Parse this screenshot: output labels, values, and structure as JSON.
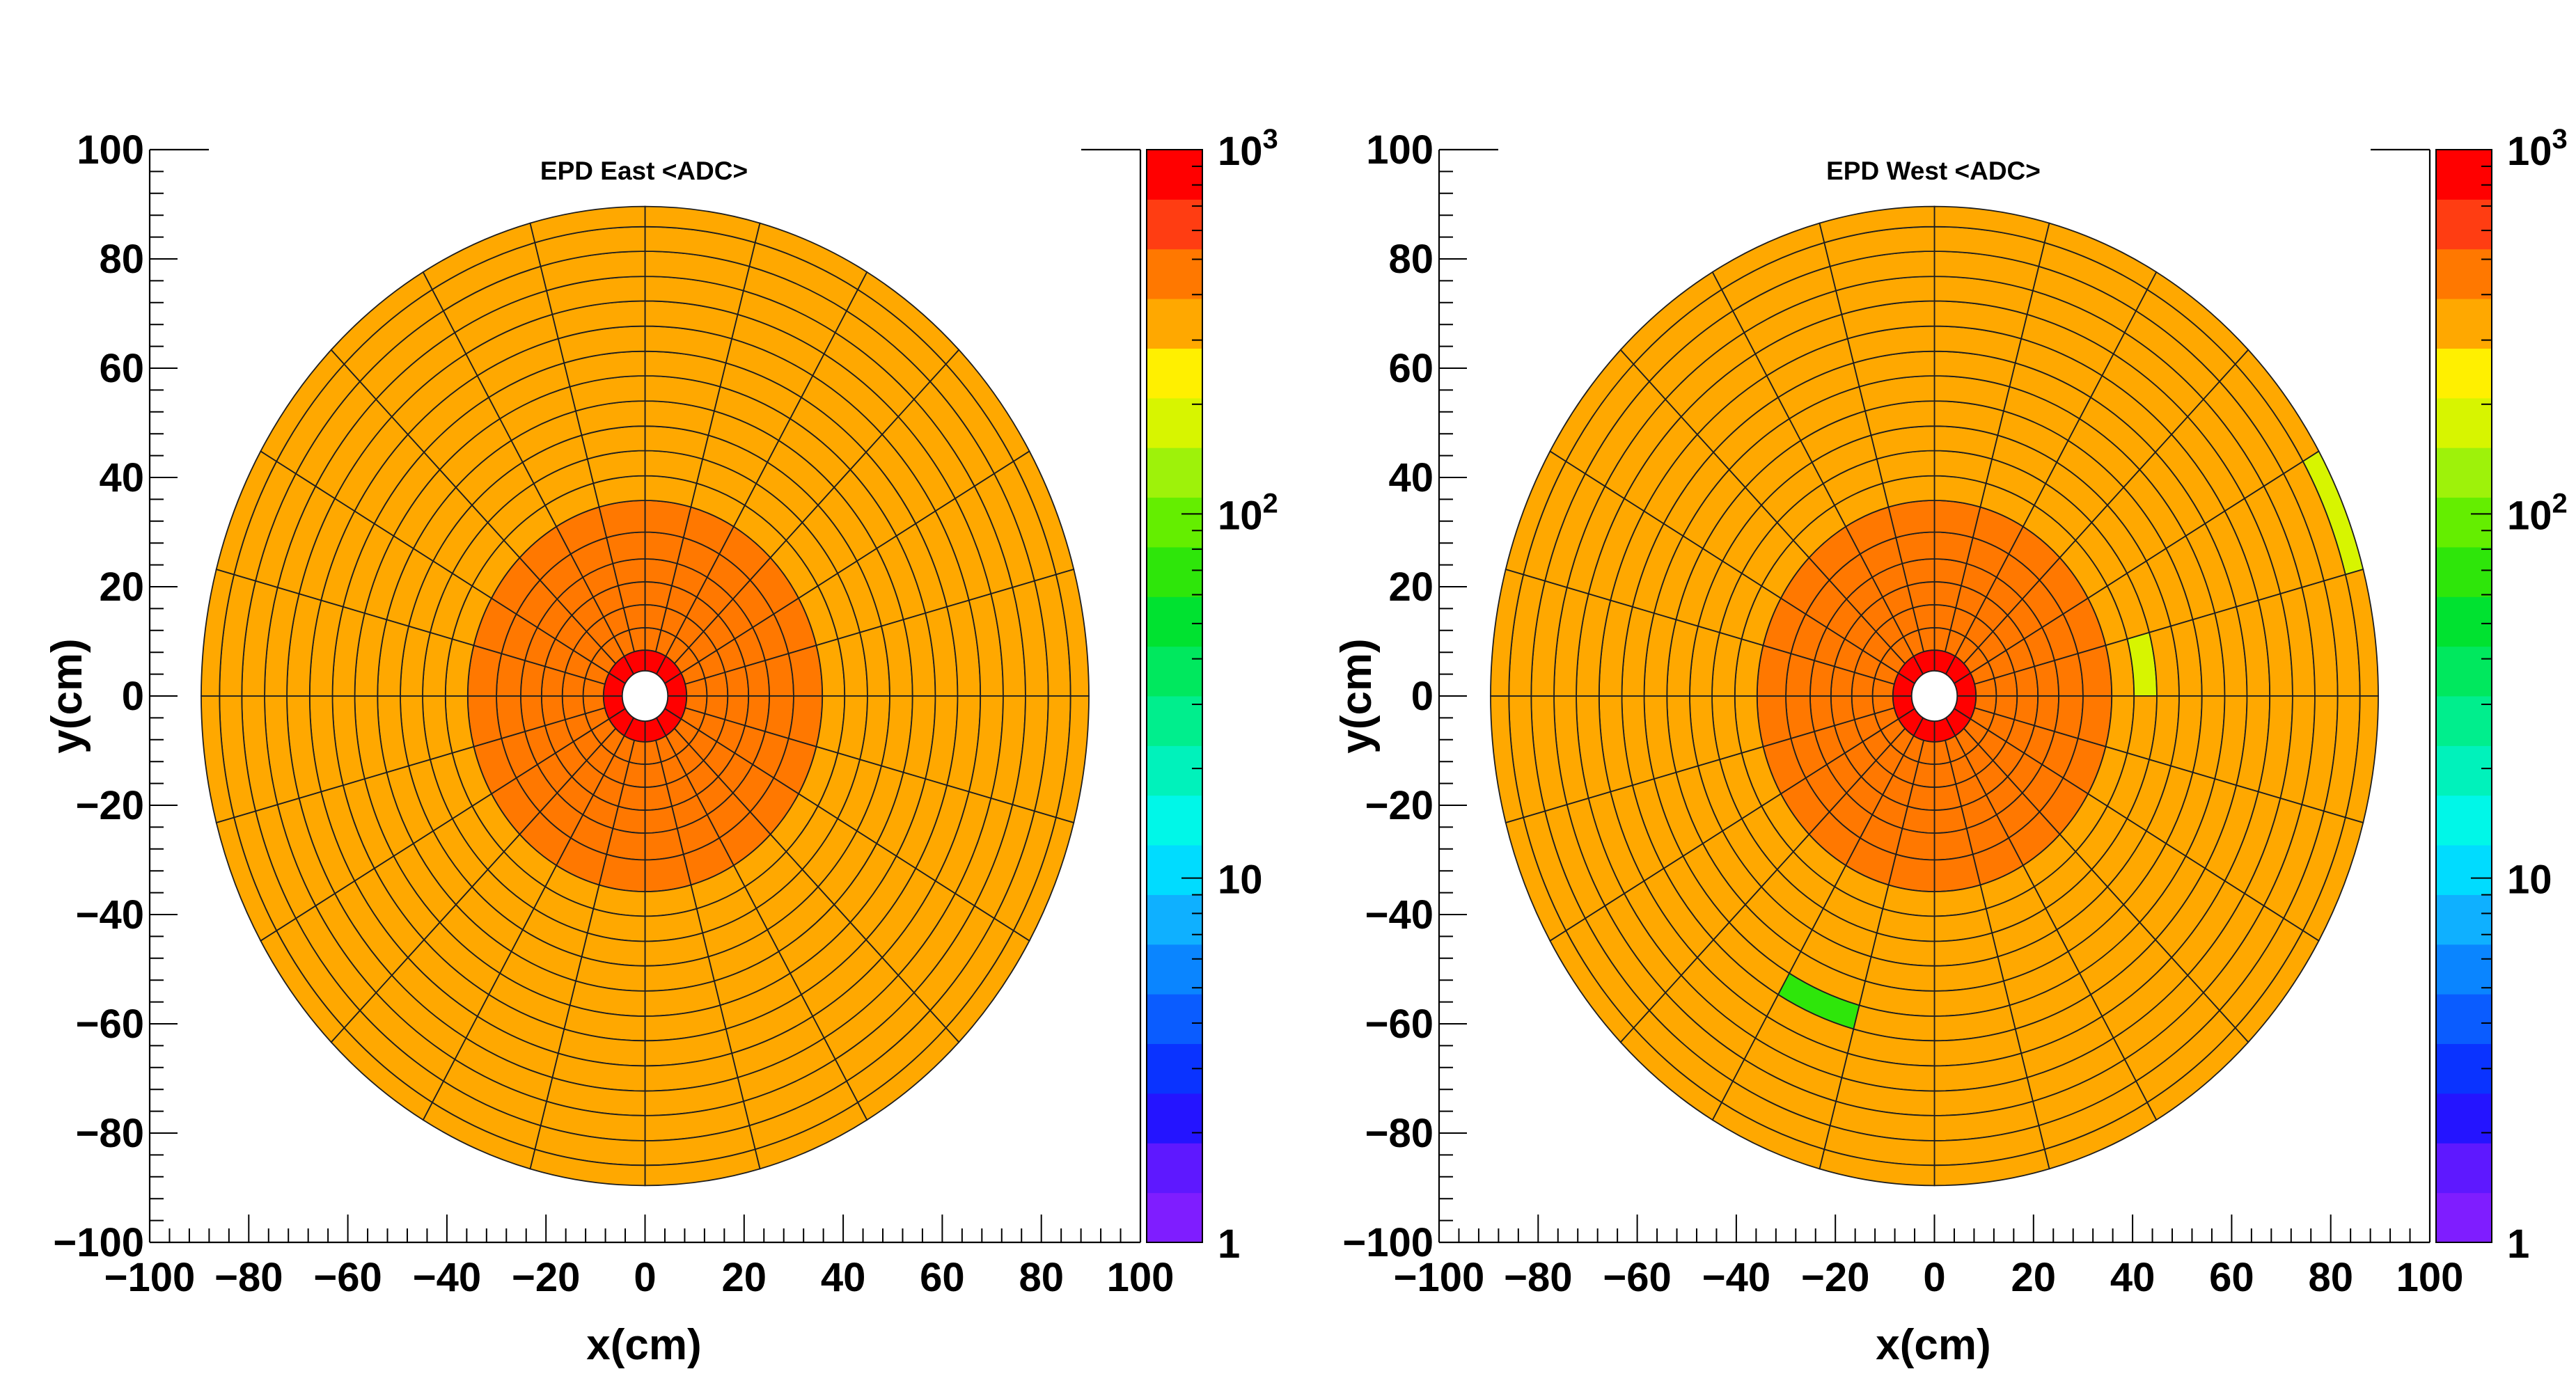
{
  "chart_data": [
    {
      "type": "heatmap",
      "subtype": "polar-tile-map",
      "title": "EPD East <ADC>",
      "xlabel": "x(cm)",
      "ylabel": "y(cm)",
      "xlim": [
        -100,
        100
      ],
      "ylim": [
        -100,
        100
      ],
      "x_ticks": [
        "−100",
        "−80",
        "−60",
        "−40",
        "−20",
        "0",
        "20",
        "40",
        "60",
        "80",
        "100"
      ],
      "y_ticks": [
        "−100",
        "−80",
        "−60",
        "−40",
        "−20",
        "0",
        "20",
        "40",
        "60",
        "80",
        "100"
      ],
      "z_scale": "log",
      "zlim": [
        1,
        1000
      ],
      "z_ticks": [
        {
          "base": "1",
          "exp": ""
        },
        {
          "base": "10",
          "exp": ""
        },
        {
          "base": "10",
          "exp": "2"
        },
        {
          "base": "10",
          "exp": "3"
        }
      ],
      "rings_cm": [
        4.6,
        8.4,
        12.5,
        16.7,
        20.9,
        25.1,
        30.0,
        35.8,
        40.3,
        44.9,
        49.4,
        54.0,
        58.6,
        63.1,
        67.7,
        72.3,
        76.8,
        81.4,
        85.9,
        89.6
      ],
      "sectors": 24,
      "ring_group_values": {
        "innermost": 800,
        "inner": 500,
        "outer": 320
      },
      "inner_group_max_ring": 7,
      "special_tiles": []
    },
    {
      "type": "heatmap",
      "subtype": "polar-tile-map",
      "title": "EPD West <ADC>",
      "xlabel": "x(cm)",
      "ylabel": "y(cm)",
      "xlim": [
        -100,
        100
      ],
      "ylim": [
        -100,
        100
      ],
      "x_ticks": [
        "−100",
        "−80",
        "−60",
        "−40",
        "−20",
        "0",
        "20",
        "40",
        "60",
        "80",
        "100"
      ],
      "y_ticks": [
        "−100",
        "−80",
        "−60",
        "−40",
        "−20",
        "0",
        "20",
        "40",
        "60",
        "80",
        "100"
      ],
      "z_scale": "log",
      "zlim": [
        1,
        1000
      ],
      "z_ticks": [
        {
          "base": "1",
          "exp": ""
        },
        {
          "base": "10",
          "exp": ""
        },
        {
          "base": "10",
          "exp": "2"
        },
        {
          "base": "10",
          "exp": "3"
        }
      ],
      "rings_cm": [
        4.6,
        8.4,
        12.5,
        16.7,
        20.9,
        25.1,
        30.0,
        35.8,
        40.3,
        44.9,
        49.4,
        54.0,
        58.6,
        63.1,
        67.7,
        72.3,
        76.8,
        81.4,
        85.9,
        89.6
      ],
      "sectors": 24,
      "ring_group_values": {
        "innermost": 800,
        "inner": 500,
        "outer": 320
      },
      "inner_group_max_ring": 7,
      "special_tiles": [
        {
          "ring": 1,
          "sector": 11,
          "value": 500
        },
        {
          "ring": 18,
          "sector": 4,
          "value": 180
        },
        {
          "ring": 8,
          "sector": 5,
          "value": 200
        },
        {
          "ring": 12,
          "sector": 13,
          "value": 60
        }
      ]
    }
  ],
  "palette": {
    "colors": [
      "#7f1dff",
      "#5e18ff",
      "#2414ff",
      "#0a33ff",
      "#0a5cff",
      "#0a85ff",
      "#0fb0ff",
      "#00dcff",
      "#00f7e8",
      "#00f2bb",
      "#00ee8d",
      "#00e85e",
      "#00e230",
      "#2ee60a",
      "#64ee00",
      "#9ef20a",
      "#d7f500",
      "#fff000",
      "#ffa800",
      "#ff7800",
      "#ff3d12",
      "#ff0000"
    ],
    "grid_line_color": "#1e1e1e",
    "hole_color": "#ffffff"
  }
}
